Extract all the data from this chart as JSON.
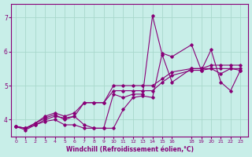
{
  "xlabel": "Windchill (Refroidissement éolien,°C)",
  "bg_color": "#c8eee8",
  "line_color": "#880077",
  "grid_color": "#a8d8cc",
  "ylim": [
    3.5,
    7.4
  ],
  "xlim": [
    -0.5,
    23.8
  ],
  "yticks": [
    4,
    5,
    6,
    7
  ],
  "xticks": [
    0,
    1,
    2,
    3,
    4,
    5,
    6,
    7,
    8,
    9,
    10,
    11,
    12,
    13,
    14,
    15,
    16,
    18,
    19,
    20,
    21,
    22,
    23
  ],
  "series": [
    {
      "x": [
        0,
        1,
        2,
        3,
        4,
        5,
        6,
        7,
        8,
        9,
        10,
        11,
        12,
        13,
        14,
        15,
        16,
        18,
        19,
        20,
        21,
        22,
        23
      ],
      "y": [
        3.8,
        3.7,
        3.85,
        3.95,
        4.0,
        3.85,
        3.85,
        3.75,
        3.75,
        3.75,
        3.75,
        4.3,
        4.65,
        4.7,
        4.65,
        5.95,
        5.85,
        6.2,
        5.45,
        6.05,
        5.1,
        4.85,
        5.45
      ]
    },
    {
      "x": [
        0,
        1,
        2,
        3,
        4,
        5,
        6,
        7,
        8,
        9,
        10,
        11,
        12,
        13,
        14,
        15,
        16,
        18,
        19,
        20,
        21,
        22,
        23
      ],
      "y": [
        3.8,
        3.75,
        3.85,
        4.0,
        4.1,
        4.05,
        4.1,
        3.85,
        3.75,
        3.75,
        4.75,
        4.65,
        4.75,
        4.75,
        7.05,
        5.9,
        5.1,
        5.5,
        5.5,
        5.5,
        5.35,
        5.5,
        5.45
      ]
    },
    {
      "x": [
        0,
        1,
        2,
        3,
        4,
        5,
        6,
        7,
        8,
        9,
        10,
        11,
        12,
        13,
        14,
        15,
        16,
        18,
        19,
        20,
        21,
        22,
        23
      ],
      "y": [
        3.8,
        3.75,
        3.9,
        4.05,
        4.15,
        4.0,
        4.1,
        4.5,
        4.5,
        4.5,
        4.85,
        4.85,
        4.85,
        4.85,
        4.85,
        5.1,
        5.3,
        5.45,
        5.45,
        5.5,
        5.5,
        5.5,
        5.5
      ]
    },
    {
      "x": [
        0,
        1,
        2,
        3,
        4,
        5,
        6,
        7,
        8,
        9,
        10,
        11,
        12,
        13,
        14,
        15,
        16,
        18,
        19,
        20,
        21,
        22,
        23
      ],
      "y": [
        3.8,
        3.75,
        3.9,
        4.1,
        4.2,
        4.1,
        4.2,
        4.5,
        4.5,
        4.5,
        5.0,
        5.0,
        5.0,
        5.0,
        5.0,
        5.2,
        5.4,
        5.5,
        5.5,
        5.6,
        5.6,
        5.6,
        5.6
      ]
    }
  ]
}
